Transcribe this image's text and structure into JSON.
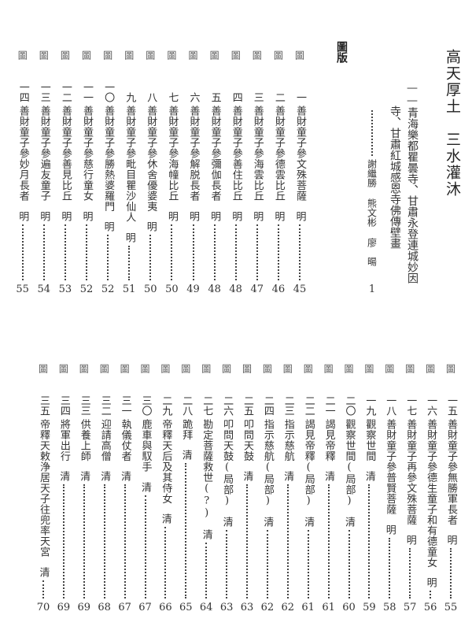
{
  "header": {
    "title": "高天厚土　三水灌沐",
    "subtitle_line1": "——青海樂都瞿曇寺、甘肅永登連城妙因",
    "subtitle_line2": "寺、甘肅紅城感恩寺佛傳壁畫",
    "authors": [
      "謝繼勝",
      "熊文彬",
      "廖　暘"
    ],
    "author_page": "1"
  },
  "section_title": "圖版",
  "figure_label": "圖",
  "plates_top": [
    {
      "num": "一",
      "title": "善財童子參文殊菩薩",
      "dynasty": "明",
      "page": "45"
    },
    {
      "num": "二",
      "title": "善財童子參德雲比丘",
      "dynasty": "明",
      "page": "46"
    },
    {
      "num": "三",
      "title": "善財童子參海雲比丘",
      "dynasty": "明",
      "page": "47"
    },
    {
      "num": "四",
      "title": "善財童子參善住比丘",
      "dynasty": "明",
      "page": "48"
    },
    {
      "num": "五",
      "title": "善財童子參彌伽長者",
      "dynasty": "明",
      "page": "48"
    },
    {
      "num": "六",
      "title": "善財童子參解脱長者",
      "dynasty": "明",
      "page": "49"
    },
    {
      "num": "七",
      "title": "善財童子參海幢比丘",
      "dynasty": "明",
      "page": "50"
    },
    {
      "num": "八",
      "title": "善財童子參休舍優婆夷",
      "dynasty": "明",
      "page": "50"
    },
    {
      "num": "九",
      "title": "善財童子參毗目瞿沙仙人",
      "dynasty": "明",
      "page": "51"
    },
    {
      "num": "一〇",
      "title": "善財童子參勝熱婆羅門",
      "dynasty": "明",
      "page": "52"
    },
    {
      "num": "一一",
      "title": "善財童子參慈行童女",
      "dynasty": "明",
      "page": "52"
    },
    {
      "num": "一二",
      "title": "善財童子參善見比丘",
      "dynasty": "明",
      "page": "53"
    },
    {
      "num": "一三",
      "title": "善財童子參遍友童子",
      "dynasty": "明",
      "page": "54"
    },
    {
      "num": "一四",
      "title": "善財童子參妙月長者",
      "dynasty": "明",
      "page": "55"
    }
  ],
  "plates_bottom": [
    {
      "num": "一五",
      "title": "善財童子參無勝軍長者",
      "dynasty": "明",
      "page": "55"
    },
    {
      "num": "一六",
      "title": "善財童子參德生童子和有德童女",
      "dynasty": "明",
      "page": "56"
    },
    {
      "num": "一七",
      "title": "善財童子再參文殊菩薩",
      "dynasty": "明",
      "page": "57"
    },
    {
      "num": "一八",
      "title": "善財童子參普賢菩薩",
      "dynasty": "明",
      "page": "58"
    },
    {
      "num": "一九",
      "title": "觀察世間",
      "dynasty": "清",
      "page": "59"
    },
    {
      "num": "二〇",
      "title": "觀察世間(局部)",
      "dynasty": "清",
      "page": "60"
    },
    {
      "num": "二一",
      "title": "謁見帝釋",
      "dynasty": "清",
      "page": "61"
    },
    {
      "num": "二二",
      "title": "謁見帝釋(局部)",
      "dynasty": "清",
      "page": "61"
    },
    {
      "num": "二三",
      "title": "指示慈航",
      "dynasty": "清",
      "page": "62"
    },
    {
      "num": "二四",
      "title": "指示慈航(局部)",
      "dynasty": "清",
      "page": "62"
    },
    {
      "num": "二五",
      "title": "叩問天鼓",
      "dynasty": "清",
      "page": "63"
    },
    {
      "num": "二六",
      "title": "叩問天鼓(局部)",
      "dynasty": "清",
      "page": "63"
    },
    {
      "num": "二七",
      "title": "勘定菩薩救世(?)",
      "dynasty": "清",
      "page": "64"
    },
    {
      "num": "二八",
      "title": "跪拜",
      "dynasty": "清",
      "page": "65"
    },
    {
      "num": "二九",
      "title": "帝釋天后及其侍女",
      "dynasty": "清",
      "page": "66"
    },
    {
      "num": "三〇",
      "title": "鹿車與馭手",
      "dynasty": "清",
      "page": "67"
    },
    {
      "num": "三一",
      "title": "執儀仗者",
      "dynasty": "清",
      "page": "67"
    },
    {
      "num": "三二",
      "title": "迎請高僧",
      "dynasty": "清",
      "page": "68"
    },
    {
      "num": "三三",
      "title": "供養上師",
      "dynasty": "清",
      "page": "69"
    },
    {
      "num": "三四",
      "title": "將軍出行",
      "dynasty": "清",
      "page": "69"
    },
    {
      "num": "三五",
      "title": "帝釋天敕浄居天子往兜率天宮",
      "dynasty": "清",
      "page": "70"
    }
  ]
}
